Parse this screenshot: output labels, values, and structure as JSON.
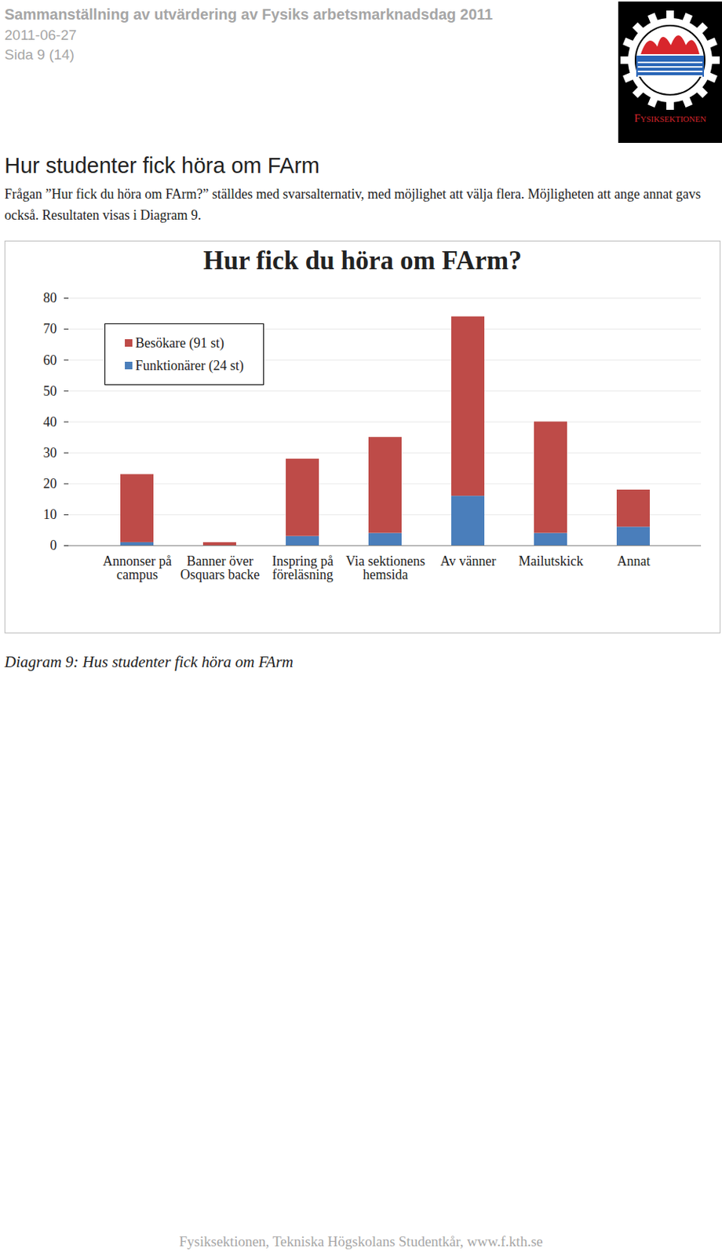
{
  "header": {
    "title": "Sammanställning av utvärdering av Fysiks arbetsmarknadsdag 2011",
    "date": "2011-06-27",
    "page": "Sida 9 (14)",
    "logo_text": "Fysiksektionen"
  },
  "section": {
    "heading": "Hur studenter fick höra om FArm",
    "text": "Frågan ”Hur fick du höra om FArm?” ställdes med svarsalternativ, med möjlighet att välja flera. Möjligheten att ange annat gavs också. Resultaten visas i Diagram 9."
  },
  "chart_data": {
    "type": "bar",
    "title": "Hur fick du höra om FArm?",
    "categories": [
      "Annonser på campus",
      "Banner över Osquars backe",
      "Inspring på föreläsning",
      "Via sektionens hemsida",
      "Av vänner",
      "Mailutskick",
      "Annat"
    ],
    "series": [
      {
        "name": "Besökare (91 st)",
        "color": "#be4b48",
        "values": [
          22,
          1,
          25,
          31,
          58,
          36,
          12
        ]
      },
      {
        "name": "Funktionärer (24 st)",
        "color": "#4a7ebb",
        "values": [
          1,
          0,
          3,
          4,
          16,
          4,
          6
        ]
      }
    ],
    "stacked": true,
    "ylim": [
      0,
      80
    ],
    "yticks": [
      0,
      10,
      20,
      30,
      40,
      50,
      60,
      70,
      80
    ],
    "grid": true,
    "legend": "top-left"
  },
  "caption": "Diagram 9: Hus studenter fick höra om FArm",
  "footer": "Fysiksektionen, Tekniska Högskolans Studentkår, www.f.kth.se"
}
